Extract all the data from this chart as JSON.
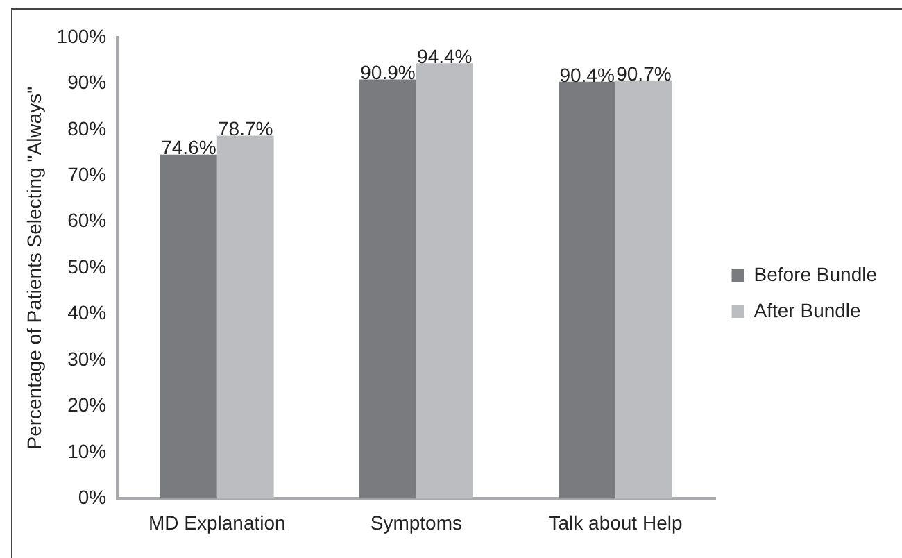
{
  "chart_data": {
    "type": "bar",
    "ylabel": "Percentage of Patients Selecting \"Always\"",
    "categories": [
      "MD Explanation",
      "Symptoms",
      "Talk about Help"
    ],
    "series": [
      {
        "name": "Before Bundle",
        "color": "#7a7b7f",
        "values": [
          74.6,
          90.9,
          90.4
        ],
        "value_labels": [
          "74.6%",
          "90.9%",
          "90.4%"
        ]
      },
      {
        "name": "After Bundle",
        "color": "#bcbdc1",
        "values": [
          78.7,
          94.4,
          90.7
        ],
        "value_labels": [
          "78.7%",
          "94.4%",
          "90.7%"
        ]
      }
    ],
    "ylim": [
      0,
      100
    ],
    "yticks": [
      {
        "value": 0,
        "label": "0%"
      },
      {
        "value": 10,
        "label": "10%"
      },
      {
        "value": 20,
        "label": "20%"
      },
      {
        "value": 30,
        "label": "30%"
      },
      {
        "value": 40,
        "label": "40%"
      },
      {
        "value": 50,
        "label": "50%"
      },
      {
        "value": 60,
        "label": "60%"
      },
      {
        "value": 70,
        "label": "70%"
      },
      {
        "value": 80,
        "label": "80%"
      },
      {
        "value": 90,
        "label": "90%"
      },
      {
        "value": 100,
        "label": "100%"
      }
    ],
    "grid": false,
    "legend": "right"
  }
}
